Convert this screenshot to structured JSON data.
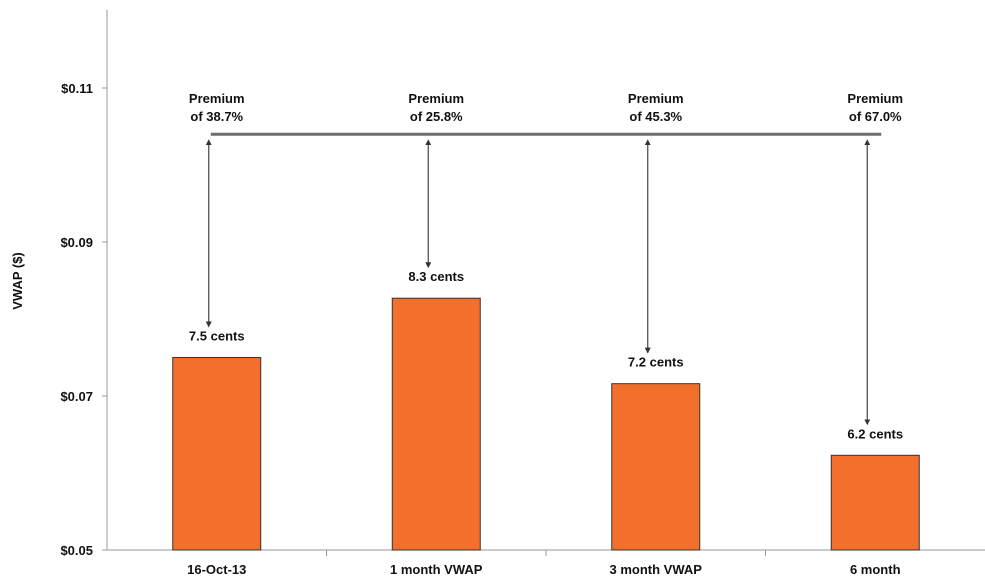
{
  "chart_data": {
    "type": "bar",
    "ylabel": "VWAP ($)",
    "xlabel": "",
    "title": "",
    "categories": [
      "16-Oct-13",
      "1 month VWAP",
      "3 month VWAP",
      "6 month"
    ],
    "values": [
      0.075,
      0.0827,
      0.0716,
      0.0623
    ],
    "bar_labels": [
      "7.5 cents",
      "8.3 cents",
      "7.2 cents",
      "6.2 cents"
    ],
    "ylim": [
      0.05,
      0.11
    ],
    "yticks": [
      0.05,
      0.07,
      0.09,
      0.11
    ],
    "ytick_labels": [
      "$0.05",
      "$0.07",
      "$0.09",
      "$0.11"
    ],
    "offer_price": 0.104,
    "premium_labels": [
      [
        "Premium",
        "of 38.7%"
      ],
      [
        "Premium",
        "of 25.8%"
      ],
      [
        "Premium",
        "of 45.3%"
      ],
      [
        "Premium",
        "of 67.0%"
      ]
    ],
    "colors": {
      "bar": "#F26F2C",
      "bar_edge": "#333333",
      "axis": "#999999",
      "reference_line": "#6e6e6e",
      "arrow": "#444444"
    },
    "grid": false
  }
}
